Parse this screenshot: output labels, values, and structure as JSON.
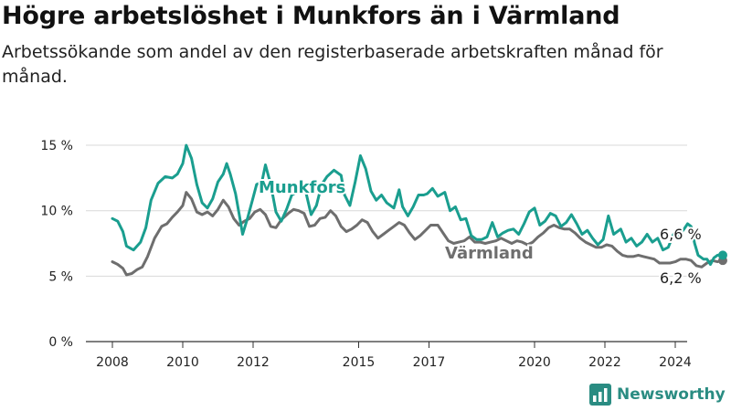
{
  "header": {
    "title": "Högre arbetslöshet i Munkfors än i Värmland",
    "subtitle": "Arbetssökande som andel av den registerbaserade arbetskraften månad för månad."
  },
  "brand": {
    "name": "Newsworthy"
  },
  "colors": {
    "munkfors": "#1a9e8f",
    "varmland": "#6e6e6e",
    "grid": "#d9d9d9",
    "brand": "#2a8c82"
  },
  "chart_data": {
    "type": "line",
    "y_ticks": [
      "0 %",
      "5 %",
      "10 %",
      "15 %"
    ],
    "y_tick_values": [
      0,
      5,
      10,
      15
    ],
    "x_ticks": [
      "2008",
      "2010",
      "2012",
      "2015",
      "2017",
      "2020",
      "2022",
      "2024"
    ],
    "x_tick_values": [
      2008,
      2010,
      2012,
      2015,
      2017,
      2020,
      2022,
      2024
    ],
    "ylim": [
      0,
      15
    ],
    "grid": true,
    "series": [
      {
        "name": "Munkfors",
        "color": "#1a9e8f",
        "end_label": "6,6 %",
        "points": [
          [
            2008.0,
            9.4
          ],
          [
            2008.15,
            9.2
          ],
          [
            2008.3,
            8.4
          ],
          [
            2008.4,
            7.3
          ],
          [
            2008.6,
            7.0
          ],
          [
            2008.8,
            7.6
          ],
          [
            2008.95,
            8.7
          ],
          [
            2009.1,
            10.8
          ],
          [
            2009.3,
            12.1
          ],
          [
            2009.5,
            12.6
          ],
          [
            2009.7,
            12.5
          ],
          [
            2009.85,
            12.8
          ],
          [
            2010.0,
            13.6
          ],
          [
            2010.1,
            15.0
          ],
          [
            2010.25,
            14.0
          ],
          [
            2010.4,
            12.0
          ],
          [
            2010.55,
            10.6
          ],
          [
            2010.7,
            10.2
          ],
          [
            2010.85,
            10.9
          ],
          [
            2011.0,
            12.2
          ],
          [
            2011.15,
            12.8
          ],
          [
            2011.25,
            13.6
          ],
          [
            2011.35,
            12.8
          ],
          [
            2011.5,
            11.3
          ],
          [
            2011.6,
            9.8
          ],
          [
            2011.7,
            8.2
          ],
          [
            2011.85,
            9.5
          ],
          [
            2012.0,
            11.0
          ],
          [
            2012.1,
            12.0
          ],
          [
            2012.25,
            12.2
          ],
          [
            2012.35,
            13.5
          ],
          [
            2012.5,
            12.0
          ],
          [
            2012.65,
            9.9
          ],
          [
            2012.8,
            9.2
          ],
          [
            2012.95,
            10.1
          ],
          [
            2013.1,
            11.2
          ],
          [
            2013.3,
            11.5
          ],
          [
            2013.5,
            11.4
          ],
          [
            2013.65,
            9.7
          ],
          [
            2013.8,
            10.4
          ],
          [
            2013.95,
            12.0
          ],
          [
            2014.1,
            12.6
          ],
          [
            2014.3,
            13.1
          ],
          [
            2014.5,
            12.7
          ],
          [
            2014.6,
            11.2
          ],
          [
            2014.75,
            10.4
          ],
          [
            2014.9,
            12.2
          ],
          [
            2015.05,
            14.2
          ],
          [
            2015.2,
            13.2
          ],
          [
            2015.35,
            11.5
          ],
          [
            2015.5,
            10.8
          ],
          [
            2015.65,
            11.2
          ],
          [
            2015.8,
            10.6
          ],
          [
            2016.0,
            10.2
          ],
          [
            2016.15,
            11.6
          ],
          [
            2016.25,
            10.3
          ],
          [
            2016.4,
            9.6
          ],
          [
            2016.55,
            10.3
          ],
          [
            2016.7,
            11.2
          ],
          [
            2016.85,
            11.2
          ],
          [
            2016.95,
            11.3
          ],
          [
            2017.1,
            11.7
          ],
          [
            2017.25,
            11.1
          ],
          [
            2017.45,
            11.4
          ],
          [
            2017.6,
            10.0
          ],
          [
            2017.75,
            10.3
          ],
          [
            2017.9,
            9.3
          ],
          [
            2018.05,
            9.4
          ],
          [
            2018.2,
            8.1
          ],
          [
            2018.35,
            7.8
          ],
          [
            2018.5,
            7.8
          ],
          [
            2018.65,
            8.0
          ],
          [
            2018.8,
            9.1
          ],
          [
            2018.95,
            8.0
          ],
          [
            2019.1,
            8.3
          ],
          [
            2019.25,
            8.5
          ],
          [
            2019.4,
            8.6
          ],
          [
            2019.55,
            8.2
          ],
          [
            2019.7,
            9.0
          ],
          [
            2019.85,
            9.9
          ],
          [
            2020.0,
            10.2
          ],
          [
            2020.15,
            8.9
          ],
          [
            2020.3,
            9.2
          ],
          [
            2020.45,
            9.8
          ],
          [
            2020.6,
            9.6
          ],
          [
            2020.75,
            8.8
          ],
          [
            2020.9,
            9.1
          ],
          [
            2021.05,
            9.7
          ],
          [
            2021.2,
            9.0
          ],
          [
            2021.35,
            8.2
          ],
          [
            2021.5,
            8.5
          ],
          [
            2021.65,
            7.9
          ],
          [
            2021.8,
            7.4
          ],
          [
            2021.95,
            7.8
          ],
          [
            2022.1,
            9.6
          ],
          [
            2022.25,
            8.2
          ],
          [
            2022.45,
            8.6
          ],
          [
            2022.6,
            7.6
          ],
          [
            2022.75,
            7.9
          ],
          [
            2022.9,
            7.3
          ],
          [
            2023.05,
            7.6
          ],
          [
            2023.2,
            8.2
          ],
          [
            2023.35,
            7.6
          ],
          [
            2023.5,
            7.9
          ],
          [
            2023.65,
            7.0
          ],
          [
            2023.8,
            7.2
          ],
          [
            2023.95,
            8.2
          ],
          [
            2024.1,
            8.1
          ],
          [
            2024.25,
            8.6
          ],
          [
            2024.35,
            9.0
          ],
          [
            2024.45,
            8.8
          ],
          [
            2024.55,
            7.5
          ],
          [
            2024.65,
            6.6
          ],
          [
            2024.8,
            6.3
          ],
          [
            2024.9,
            6.3
          ],
          [
            2025.0,
            5.9
          ],
          [
            2025.1,
            6.4
          ],
          [
            2025.2,
            6.6
          ],
          [
            2025.35,
            6.6
          ]
        ]
      },
      {
        "name": "Värmland",
        "color": "#6e6e6e",
        "end_label": "6,2 %",
        "points": [
          [
            2008.0,
            6.1
          ],
          [
            2008.15,
            5.9
          ],
          [
            2008.3,
            5.6
          ],
          [
            2008.4,
            5.1
          ],
          [
            2008.55,
            5.2
          ],
          [
            2008.7,
            5.5
          ],
          [
            2008.85,
            5.7
          ],
          [
            2009.0,
            6.5
          ],
          [
            2009.2,
            7.9
          ],
          [
            2009.4,
            8.8
          ],
          [
            2009.55,
            9.0
          ],
          [
            2009.7,
            9.5
          ],
          [
            2009.85,
            9.9
          ],
          [
            2010.0,
            10.4
          ],
          [
            2010.1,
            11.4
          ],
          [
            2010.25,
            10.9
          ],
          [
            2010.4,
            9.9
          ],
          [
            2010.55,
            9.7
          ],
          [
            2010.7,
            9.9
          ],
          [
            2010.85,
            9.6
          ],
          [
            2011.0,
            10.1
          ],
          [
            2011.15,
            10.8
          ],
          [
            2011.3,
            10.3
          ],
          [
            2011.45,
            9.4
          ],
          [
            2011.6,
            8.9
          ],
          [
            2011.75,
            9.2
          ],
          [
            2011.9,
            9.4
          ],
          [
            2012.05,
            9.9
          ],
          [
            2012.2,
            10.1
          ],
          [
            2012.35,
            9.7
          ],
          [
            2012.5,
            8.8
          ],
          [
            2012.65,
            8.7
          ],
          [
            2012.8,
            9.3
          ],
          [
            2013.0,
            9.8
          ],
          [
            2013.15,
            10.1
          ],
          [
            2013.3,
            10.0
          ],
          [
            2013.45,
            9.8
          ],
          [
            2013.6,
            8.8
          ],
          [
            2013.75,
            8.9
          ],
          [
            2013.9,
            9.4
          ],
          [
            2014.05,
            9.5
          ],
          [
            2014.2,
            10.0
          ],
          [
            2014.35,
            9.6
          ],
          [
            2014.5,
            8.8
          ],
          [
            2014.65,
            8.4
          ],
          [
            2014.8,
            8.6
          ],
          [
            2014.95,
            8.9
          ],
          [
            2015.1,
            9.3
          ],
          [
            2015.25,
            9.1
          ],
          [
            2015.4,
            8.4
          ],
          [
            2015.55,
            7.9
          ],
          [
            2015.7,
            8.2
          ],
          [
            2015.85,
            8.5
          ],
          [
            2016.0,
            8.8
          ],
          [
            2016.15,
            9.1
          ],
          [
            2016.3,
            8.9
          ],
          [
            2016.45,
            8.3
          ],
          [
            2016.6,
            7.8
          ],
          [
            2016.75,
            8.1
          ],
          [
            2016.9,
            8.5
          ],
          [
            2017.05,
            8.9
          ],
          [
            2017.25,
            8.9
          ],
          [
            2017.4,
            8.3
          ],
          [
            2017.55,
            7.7
          ],
          [
            2017.7,
            7.5
          ],
          [
            2017.85,
            7.6
          ],
          [
            2018.0,
            7.7
          ],
          [
            2018.15,
            8.0
          ],
          [
            2018.3,
            7.6
          ],
          [
            2018.45,
            7.6
          ],
          [
            2018.6,
            7.5
          ],
          [
            2018.75,
            7.6
          ],
          [
            2018.9,
            7.7
          ],
          [
            2019.05,
            7.9
          ],
          [
            2019.2,
            7.7
          ],
          [
            2019.35,
            7.5
          ],
          [
            2019.5,
            7.7
          ],
          [
            2019.65,
            7.6
          ],
          [
            2019.8,
            7.4
          ],
          [
            2019.95,
            7.6
          ],
          [
            2020.1,
            8.0
          ],
          [
            2020.25,
            8.3
          ],
          [
            2020.4,
            8.7
          ],
          [
            2020.55,
            8.9
          ],
          [
            2020.7,
            8.7
          ],
          [
            2020.85,
            8.6
          ],
          [
            2021.0,
            8.6
          ],
          [
            2021.15,
            8.3
          ],
          [
            2021.3,
            7.9
          ],
          [
            2021.45,
            7.6
          ],
          [
            2021.6,
            7.4
          ],
          [
            2021.75,
            7.2
          ],
          [
            2021.9,
            7.2
          ],
          [
            2022.05,
            7.4
          ],
          [
            2022.2,
            7.3
          ],
          [
            2022.35,
            6.9
          ],
          [
            2022.5,
            6.6
          ],
          [
            2022.65,
            6.5
          ],
          [
            2022.8,
            6.5
          ],
          [
            2022.95,
            6.6
          ],
          [
            2023.1,
            6.5
          ],
          [
            2023.25,
            6.4
          ],
          [
            2023.4,
            6.3
          ],
          [
            2023.55,
            6.0
          ],
          [
            2023.7,
            6.0
          ],
          [
            2023.85,
            6.0
          ],
          [
            2024.0,
            6.1
          ],
          [
            2024.15,
            6.3
          ],
          [
            2024.3,
            6.3
          ],
          [
            2024.45,
            6.2
          ],
          [
            2024.6,
            5.8
          ],
          [
            2024.75,
            5.7
          ],
          [
            2024.9,
            6.0
          ],
          [
            2025.05,
            6.2
          ],
          [
            2025.2,
            6.1
          ],
          [
            2025.35,
            6.2
          ]
        ]
      }
    ]
  }
}
